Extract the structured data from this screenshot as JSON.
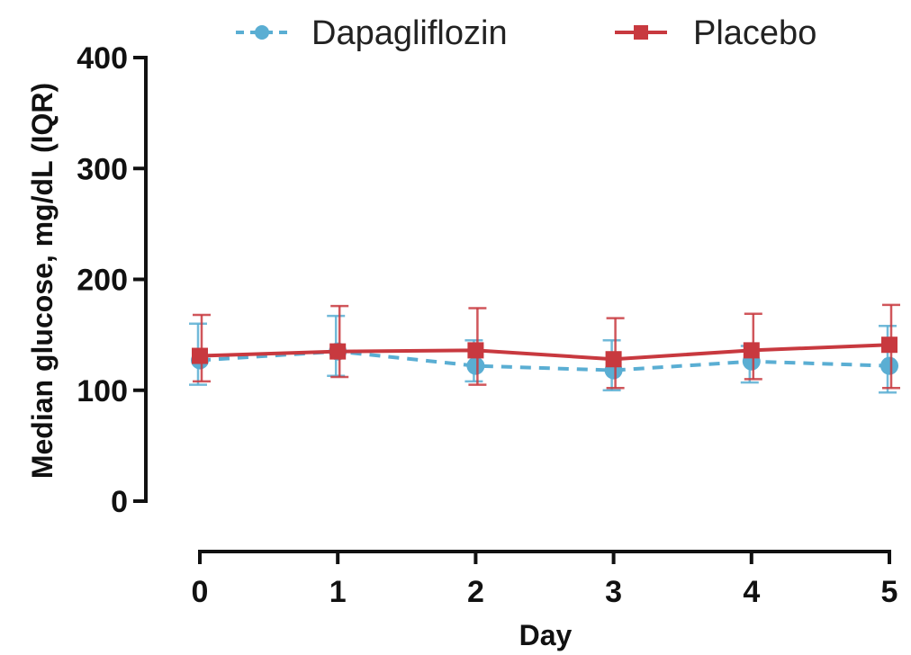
{
  "chart_data": {
    "type": "line",
    "xlabel": "Day",
    "ylabel": "Median glucose, mg/dL (IQR)",
    "x": [
      0,
      1,
      2,
      3,
      4,
      5
    ],
    "xlim": [
      0,
      5
    ],
    "ylim": [
      0,
      400
    ],
    "yticks": [
      0,
      100,
      200,
      300,
      400
    ],
    "xticks": [
      0,
      1,
      2,
      3,
      4,
      5
    ],
    "grid": false,
    "legend_position": "top",
    "series": [
      {
        "name": "Dapagliflozin",
        "color": "#5aaed3",
        "line_style": "dashed",
        "marker": "circle",
        "values": [
          127,
          135,
          122,
          118,
          126,
          122
        ],
        "q1": [
          105,
          113,
          108,
          100,
          107,
          98
        ],
        "q3": [
          160,
          167,
          145,
          145,
          140,
          158
        ]
      },
      {
        "name": "Placebo",
        "color": "#c8393f",
        "line_style": "solid",
        "marker": "square",
        "values": [
          131,
          135,
          136,
          128,
          136,
          141
        ],
        "q1": [
          108,
          112,
          105,
          102,
          110,
          102
        ],
        "q3": [
          168,
          176,
          174,
          165,
          169,
          177
        ]
      }
    ]
  }
}
